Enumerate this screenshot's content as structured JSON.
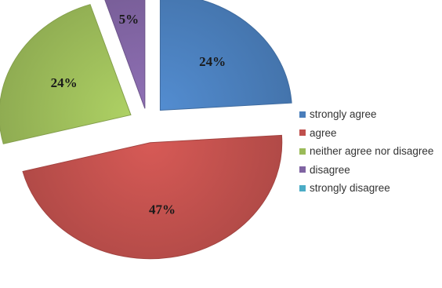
{
  "chart_data": {
    "type": "pie",
    "style": "exploded-3d",
    "slices": [
      {
        "label": "strongly agree",
        "value": 24,
        "display": "24%",
        "color": "#4a7ebb"
      },
      {
        "label": "agree",
        "value": 47,
        "display": "47%",
        "color": "#c0504d"
      },
      {
        "label": "neither agree nor disagree",
        "value": 24,
        "display": "24%",
        "color": "#9bbb59"
      },
      {
        "label": "disagree",
        "value": 5,
        "display": "5%",
        "color": "#8064a2"
      },
      {
        "label": "strongly disagree",
        "value": 0,
        "display": "",
        "color": "#4bacc6"
      }
    ],
    "legend_position": "right"
  }
}
